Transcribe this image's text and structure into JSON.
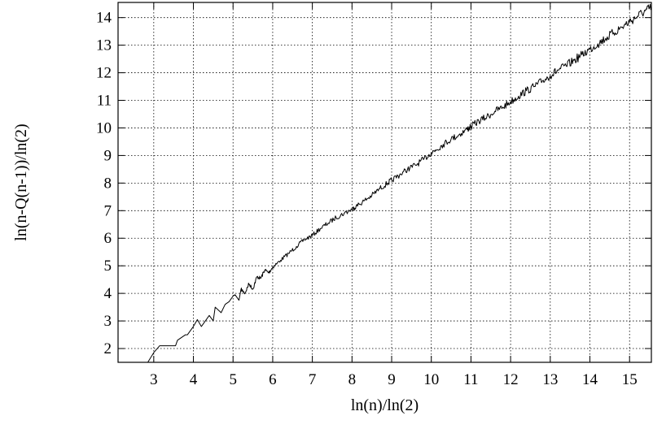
{
  "chart_data": {
    "type": "line",
    "title": "",
    "xlabel": "ln(n)/ln(2)",
    "ylabel": "ln(n-Q(n-1))/ln(2)",
    "xlim": [
      2.1,
      15.55
    ],
    "ylim": [
      1.5,
      14.55
    ],
    "xticks": [
      3,
      4,
      5,
      6,
      7,
      8,
      9,
      10,
      11,
      12,
      13,
      14,
      15
    ],
    "yticks": [
      2,
      3,
      4,
      5,
      6,
      7,
      8,
      9,
      10,
      11,
      12,
      13,
      14
    ],
    "grid": true,
    "legend": "none",
    "series": [
      {
        "x": [
          2.85,
          3.0,
          3.15,
          3.35,
          3.55,
          3.6,
          3.8,
          3.85,
          4.0,
          4.1,
          4.2,
          4.4,
          4.5,
          4.55,
          4.7,
          4.8,
          4.9,
          5.0,
          5.05,
          5.15,
          5.2,
          5.3,
          5.4,
          5.5,
          5.6,
          5.7,
          5.8,
          5.9,
          6.0,
          6.2,
          6.4,
          6.6,
          6.8,
          7.0,
          7.2,
          7.4,
          7.6,
          7.8,
          8.0,
          8.1,
          8.3,
          8.5,
          8.7,
          8.9,
          9.0,
          9.2,
          9.4,
          9.6,
          9.8,
          10.0,
          10.1,
          10.3,
          10.5,
          10.7,
          10.9,
          11.0,
          11.2,
          11.4,
          11.6,
          11.8,
          12.0,
          12.2,
          12.4,
          12.6,
          12.8,
          13.0,
          13.2,
          13.4,
          13.6,
          13.8,
          14.0,
          14.2,
          14.4,
          14.6,
          14.8,
          15.0,
          15.2,
          15.4,
          15.55
        ],
        "y": [
          1.5,
          1.85,
          2.1,
          2.1,
          2.1,
          2.3,
          2.5,
          2.5,
          2.8,
          3.05,
          2.8,
          3.2,
          3.0,
          3.5,
          3.3,
          3.6,
          3.7,
          3.9,
          3.95,
          3.75,
          4.15,
          4.0,
          4.35,
          4.15,
          4.6,
          4.55,
          4.85,
          4.75,
          4.95,
          5.2,
          5.45,
          5.7,
          5.95,
          6.1,
          6.35,
          6.55,
          6.75,
          6.9,
          7.05,
          7.15,
          7.35,
          7.55,
          7.8,
          8.0,
          8.1,
          8.3,
          8.5,
          8.65,
          8.85,
          9.1,
          9.2,
          9.4,
          9.6,
          9.75,
          9.95,
          10.05,
          10.25,
          10.4,
          10.6,
          10.75,
          10.95,
          11.15,
          11.35,
          11.5,
          11.7,
          11.9,
          12.1,
          12.25,
          12.45,
          12.65,
          12.85,
          13.05,
          13.25,
          13.45,
          13.65,
          13.85,
          14.05,
          14.25,
          14.35
        ]
      }
    ]
  }
}
